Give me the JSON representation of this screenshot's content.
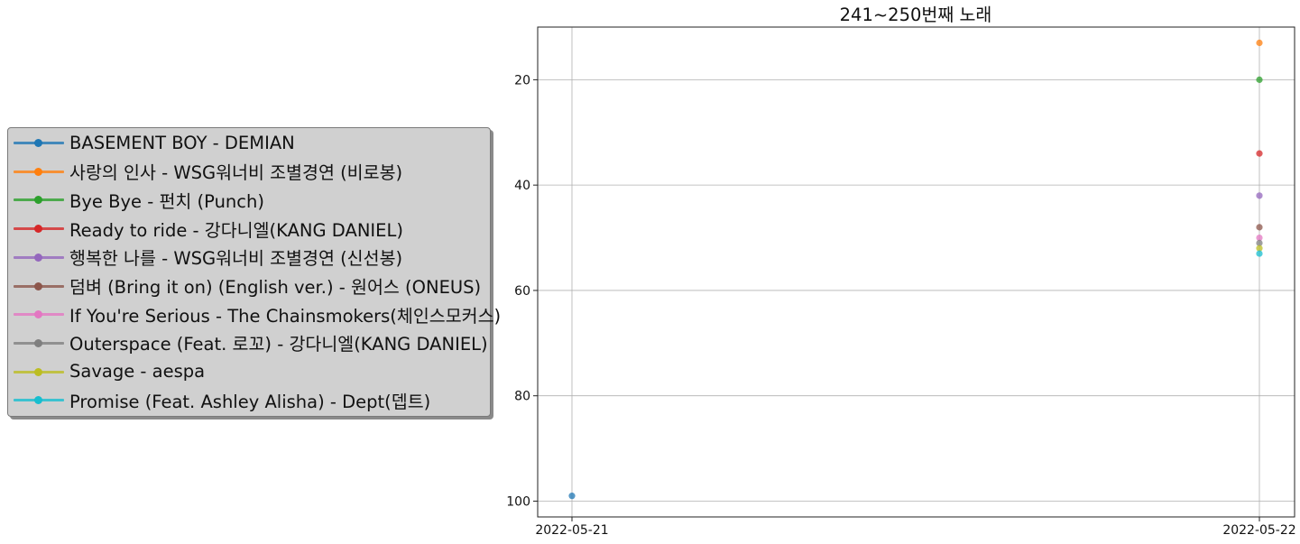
{
  "chart_data": {
    "type": "scatter",
    "title": "241~250번째 노래",
    "xlabel": "",
    "ylabel": "",
    "x_categories": [
      "2022-05-21",
      "2022-05-22"
    ],
    "y_axis": {
      "inverted": true,
      "ylim": [
        103,
        10
      ],
      "ticks": [
        20,
        40,
        60,
        80,
        100
      ]
    },
    "grid": true,
    "legend_placement": "left",
    "series": [
      {
        "name": "BASEMENT BOY - DEMIAN",
        "color": "#1f77b4",
        "points": [
          {
            "x": "2022-05-21",
            "y": 99
          }
        ]
      },
      {
        "name": "사랑의 인사 - WSG워너비 조별경연 (비로봉)",
        "color": "#ff7f0e",
        "points": [
          {
            "x": "2022-05-22",
            "y": 13
          }
        ]
      },
      {
        "name": "Bye Bye - 펀치 (Punch)",
        "color": "#2ca02c",
        "points": [
          {
            "x": "2022-05-22",
            "y": 20
          }
        ]
      },
      {
        "name": "Ready to ride - 강다니엘(KANG DANIEL)",
        "color": "#d62728",
        "points": [
          {
            "x": "2022-05-22",
            "y": 34
          }
        ]
      },
      {
        "name": "행복한 나를 - WSG워너비 조별경연 (신선봉)",
        "color": "#9467bd",
        "points": [
          {
            "x": "2022-05-22",
            "y": 42
          }
        ]
      },
      {
        "name": "덤벼 (Bring it on) (English ver.) - 원어스 (ONEUS)",
        "color": "#8c564b",
        "points": [
          {
            "x": "2022-05-22",
            "y": 48
          }
        ]
      },
      {
        "name": "If You're Serious - The Chainsmokers(체인스모커스)",
        "color": "#e377c2",
        "points": [
          {
            "x": "2022-05-22",
            "y": 50
          }
        ]
      },
      {
        "name": "Outerspace (Feat. 로꼬) - 강다니엘(KANG DANIEL)",
        "color": "#7f7f7f",
        "points": [
          {
            "x": "2022-05-22",
            "y": 51
          }
        ]
      },
      {
        "name": "Savage - aespa",
        "color": "#bcbd22",
        "points": [
          {
            "x": "2022-05-22",
            "y": 52
          }
        ]
      },
      {
        "name": "Promise (Feat. Ashley Alisha) - Dept(뎁트)",
        "color": "#17becf",
        "points": [
          {
            "x": "2022-05-22",
            "y": 53
          }
        ]
      }
    ]
  }
}
